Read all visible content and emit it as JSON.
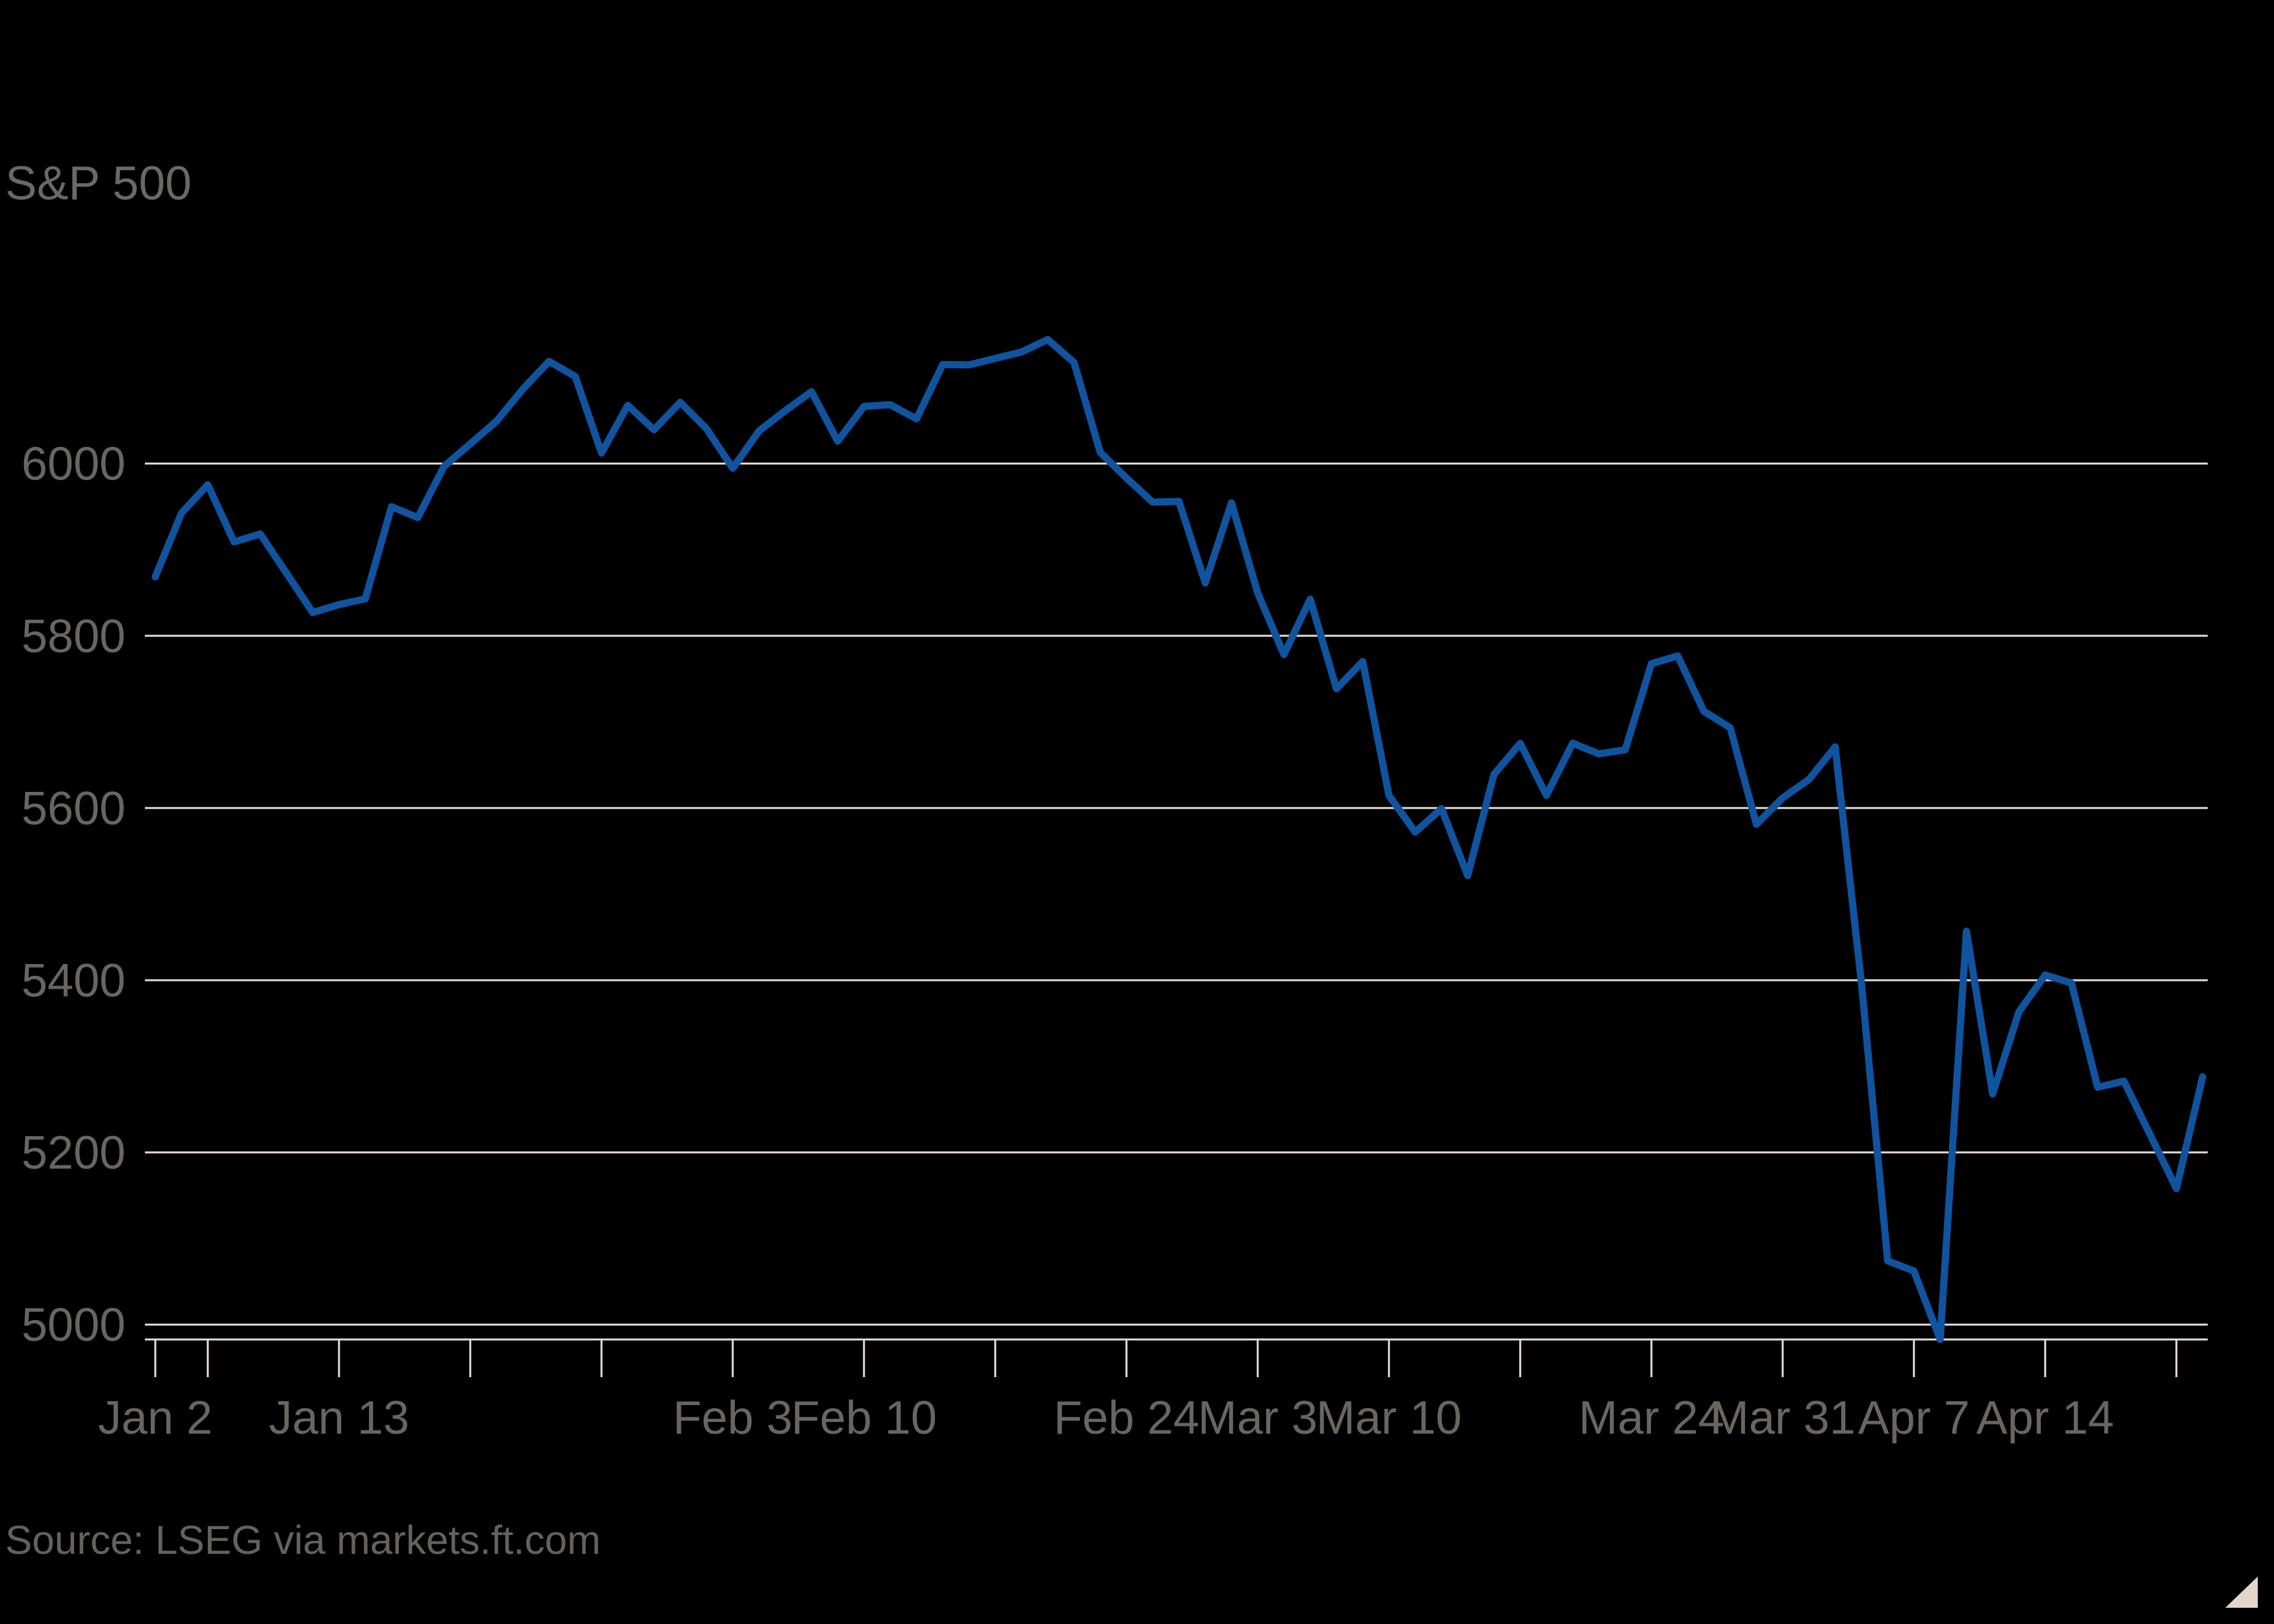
{
  "page": {
    "background_color": "#000000",
    "title": "S&P 500",
    "source": "Source: LSEG via markets.ft.com"
  },
  "chart_data": {
    "type": "line",
    "title": "S&P 500",
    "xlabel": "",
    "ylabel": "",
    "legend_position": "none",
    "grid": "horizontal-only",
    "line_color": "#10549f",
    "grid_color": "#e7ddd3",
    "text_color": "#6b655f",
    "background_color": "#000000",
    "ylim": [
      4982.77,
      6144.15
    ],
    "y_ticks": [
      5000,
      5200,
      5400,
      5600,
      5800,
      6000
    ],
    "x_ticks": [
      {
        "t": 0,
        "label": "Jan 2"
      },
      {
        "t": 2,
        "label": ""
      },
      {
        "t": 7,
        "label": "Jan 13"
      },
      {
        "t": 12,
        "label": ""
      },
      {
        "t": 17,
        "label": ""
      },
      {
        "t": 22,
        "label": "Feb 3"
      },
      {
        "t": 27,
        "label": "Feb 10"
      },
      {
        "t": 32,
        "label": ""
      },
      {
        "t": 37,
        "label": "Feb 24"
      },
      {
        "t": 42,
        "label": "Mar 3"
      },
      {
        "t": 47,
        "label": "Mar 10"
      },
      {
        "t": 52,
        "label": ""
      },
      {
        "t": 57,
        "label": "Mar 24"
      },
      {
        "t": 62,
        "label": "Mar 31"
      },
      {
        "t": 67,
        "label": "Apr 7"
      },
      {
        "t": 72,
        "label": "Apr 14"
      },
      {
        "t": 77,
        "label": ""
      }
    ],
    "series": [
      {
        "name": "S&P 500",
        "dates": [
          "Jan 2",
          "Jan 3",
          "Jan 6",
          "Jan 7",
          "Jan 8",
          "Jan 10",
          "Jan 13",
          "Jan 14",
          "Jan 15",
          "Jan 16",
          "Jan 17",
          "Jan 21",
          "Jan 22",
          "Jan 23",
          "Jan 24",
          "Jan 27",
          "Jan 28",
          "Jan 29",
          "Jan 30",
          "Jan 31",
          "Feb 3",
          "Feb 4",
          "Feb 5",
          "Feb 6",
          "Feb 7",
          "Feb 10",
          "Feb 11",
          "Feb 12",
          "Feb 13",
          "Feb 14",
          "Feb 18",
          "Feb 19",
          "Feb 20",
          "Feb 21",
          "Feb 24",
          "Feb 25",
          "Feb 26",
          "Feb 27",
          "Feb 28",
          "Mar 3",
          "Mar 4",
          "Mar 5",
          "Mar 6",
          "Mar 7",
          "Mar 10",
          "Mar 11",
          "Mar 12",
          "Mar 13",
          "Mar 14",
          "Mar 17",
          "Mar 18",
          "Mar 19",
          "Mar 20",
          "Mar 21",
          "Mar 24",
          "Mar 25",
          "Mar 26",
          "Mar 27",
          "Mar 28",
          "Mar 31",
          "Apr 1",
          "Apr 2",
          "Apr 3",
          "Apr 4",
          "Apr 7",
          "Apr 8",
          "Apr 9",
          "Apr 10",
          "Apr 11",
          "Apr 14",
          "Apr 15",
          "Apr 16",
          "Apr 17",
          "Apr 21",
          "Apr 22"
        ],
        "t": [
          0,
          1,
          2,
          3,
          4,
          6,
          7,
          8,
          9,
          10,
          11,
          13,
          14,
          15,
          16,
          17,
          18,
          19,
          20,
          21,
          22,
          23,
          24,
          25,
          26,
          27,
          28,
          29,
          30,
          31,
          33,
          34,
          35,
          36,
          37,
          38,
          39,
          40,
          41,
          42,
          43,
          44,
          45,
          46,
          47,
          48,
          49,
          50,
          51,
          52,
          53,
          54,
          55,
          56,
          57,
          58,
          59,
          60,
          61,
          62,
          63,
          64,
          65,
          66,
          67,
          68,
          69,
          70,
          71,
          72,
          73,
          74,
          75,
          77,
          78
        ],
        "values": [
          5868.55,
          5942.47,
          5975.38,
          5909.03,
          5918.25,
          5827.04,
          5836.22,
          5842.91,
          5949.91,
          5937.34,
          5996.66,
          6049.24,
          6086.37,
          6118.71,
          6101.24,
          6012.28,
          6067.7,
          6039.31,
          6071.17,
          6040.53,
          5994.57,
          6037.88,
          6061.48,
          6083.57,
          6025.99,
          6066.44,
          6068.5,
          6051.97,
          6115.07,
          6114.63,
          6129.58,
          6144.15,
          6117.52,
          6013.13,
          5983.25,
          5955.25,
          5956.06,
          5861.57,
          5954.5,
          5849.72,
          5778.15,
          5842.63,
          5738.52,
          5770.2,
          5614.56,
          5572.07,
          5599.3,
          5521.52,
          5638.94,
          5675.12,
          5614.66,
          5675.29,
          5662.89,
          5667.56,
          5767.57,
          5776.65,
          5712.2,
          5693.31,
          5580.94,
          5611.85,
          5633.07,
          5670.97,
          5396.52,
          5074.08,
          5062.25,
          4982.77,
          5456.9,
          5268.05,
          5363.36,
          5405.97,
          5396.63,
          5275.7,
          5282.7,
          5158.2,
          5287.76
        ]
      }
    ],
    "footer": {
      "source": "Source: LSEG via markets.ft.com"
    }
  }
}
